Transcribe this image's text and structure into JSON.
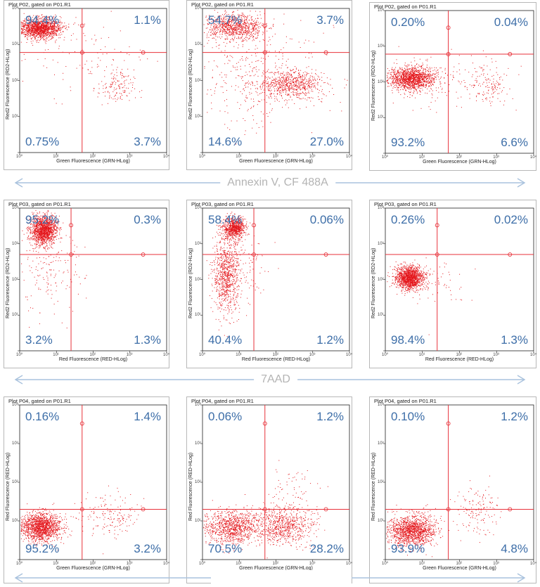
{
  "row_labels": [
    "Annexin V, CF 488A",
    "7AAD",
    ""
  ],
  "colors": {
    "dots": "#e4161b",
    "quad_lines": "#e8323a",
    "percent_text": "#3d6ea8",
    "arrow": "#a9c2dd"
  },
  "chart_data": [
    {
      "type": "scatter",
      "title": "Plot P02, gated on P01.R1",
      "xlabel": "Green Fluorescence (GRN-HLog)",
      "ylabel": "Red2 Fluorescence (RD2-HLog)",
      "x_ticks": [
        "10⁰",
        "10¹",
        "10²",
        "10³",
        "10⁴"
      ],
      "y_ticks": [
        "10⁰",
        "10¹",
        "10²",
        "10³",
        "10⁴"
      ],
      "scale": "log",
      "xlim": [
        1,
        10000
      ],
      "ylim": [
        1,
        10000
      ],
      "gate": {
        "x": 50,
        "y": 600
      },
      "quadrants": {
        "upper_left": "94.4%",
        "upper_right": "1.1%",
        "lower_left": "0.75%",
        "lower_right": "3.7%"
      }
    },
    {
      "type": "scatter",
      "title": "Plot P02, gated on P01.R1",
      "xlabel": "Green Fluorescence (GRN-HLog)",
      "ylabel": "Red2 Fluorescence (RD2-HLog)",
      "x_ticks": [
        "10⁰",
        "10¹",
        "10²",
        "10³",
        "10⁴"
      ],
      "y_ticks": [
        "10⁰",
        "10¹",
        "10²",
        "10³",
        "10⁴"
      ],
      "scale": "log",
      "xlim": [
        1,
        10000
      ],
      "ylim": [
        1,
        10000
      ],
      "gate": {
        "x": 50,
        "y": 600
      },
      "quadrants": {
        "upper_left": "54.7%",
        "upper_right": "3.7%",
        "lower_left": "14.6%",
        "lower_right": "27.0%"
      }
    },
    {
      "type": "scatter",
      "title": "Plot P02, gated on P01.R1",
      "xlabel": "Green Fluorescence (GRN-HLog)",
      "ylabel": "Red2 Fluorescence (RD2-HLog)",
      "x_ticks": [
        "10⁰",
        "10¹",
        "10²",
        "10³",
        "10⁴"
      ],
      "y_ticks": [
        "10⁰",
        "10¹",
        "10²",
        "10³",
        "10⁴"
      ],
      "scale": "log",
      "xlim": [
        1,
        10000
      ],
      "ylim": [
        1,
        10000
      ],
      "gate": {
        "x": 50,
        "y": 600
      },
      "quadrants": {
        "upper_left": "0.20%",
        "upper_right": "0.04%",
        "lower_left": "93.2%",
        "lower_right": "6.6%"
      }
    },
    {
      "type": "scatter",
      "title": "Plot P03, gated on P01.R1",
      "xlabel": "Red Fluorescence (RED-HLog)",
      "ylabel": "Red2 Fluorescence (RD2-HLog)",
      "x_ticks": [
        "10⁰",
        "10¹",
        "10²",
        "10³",
        "10⁴"
      ],
      "y_ticks": [
        "10⁰",
        "10¹",
        "10²",
        "10³",
        "10⁴"
      ],
      "scale": "log",
      "xlim": [
        1,
        10000
      ],
      "ylim": [
        1,
        10000
      ],
      "gate": {
        "x": 25,
        "y": 500
      },
      "quadrants": {
        "upper_left": "95.2%",
        "upper_right": "0.3%",
        "lower_left": "3.2%",
        "lower_right": "1.3%"
      }
    },
    {
      "type": "scatter",
      "title": "Plot P03, gated on P01.R1",
      "xlabel": "Red Fluorescence (RED-HLog)",
      "ylabel": "Red2 Fluorescence (RD2-HLog)",
      "x_ticks": [
        "10⁰",
        "10¹",
        "10²",
        "10³",
        "10⁴"
      ],
      "y_ticks": [
        "10⁰",
        "10¹",
        "10²",
        "10³",
        "10⁴"
      ],
      "scale": "log",
      "xlim": [
        1,
        10000
      ],
      "ylim": [
        1,
        10000
      ],
      "gate": {
        "x": 25,
        "y": 500
      },
      "quadrants": {
        "upper_left": "58.4%",
        "upper_right": "0.06%",
        "lower_left": "40.4%",
        "lower_right": "1.2%"
      }
    },
    {
      "type": "scatter",
      "title": "Plot P03, gated on P01.R1",
      "xlabel": "Red Fluorescence (RED-HLog)",
      "ylabel": "Red2 Fluorescence (RD2-HLog)",
      "x_ticks": [
        "10⁰",
        "10¹",
        "10²",
        "10³",
        "10⁴"
      ],
      "y_ticks": [
        "10⁰",
        "10¹",
        "10²",
        "10³",
        "10⁴"
      ],
      "scale": "log",
      "xlim": [
        1,
        10000
      ],
      "ylim": [
        1,
        10000
      ],
      "gate": {
        "x": 25,
        "y": 500
      },
      "quadrants": {
        "upper_left": "0.26%",
        "upper_right": "0.02%",
        "lower_left": "98.4%",
        "lower_right": "1.3%"
      }
    },
    {
      "type": "scatter",
      "title": "Plot P04, gated on P01.R1",
      "xlabel": "Green Fluorescence (GRN-HLog)",
      "ylabel": "Red Fluorescence (RED-HLog)",
      "x_ticks": [
        "10⁰",
        "10¹",
        "10²",
        "10³",
        "10⁴"
      ],
      "y_ticks": [
        "10⁰",
        "10¹",
        "10²",
        "10³",
        "10⁴"
      ],
      "scale": "log",
      "xlim": [
        1,
        10000
      ],
      "ylim": [
        1,
        10000
      ],
      "gate": {
        "x": 50,
        "y": 20
      },
      "quadrants": {
        "upper_left": "0.16%",
        "upper_right": "1.4%",
        "lower_left": "95.2%",
        "lower_right": "3.2%"
      }
    },
    {
      "type": "scatter",
      "title": "Plot P04, gated on P01.R1",
      "xlabel": "Green Fluorescence (GRN-HLog)",
      "ylabel": "Red Fluorescence (RED-HLog)",
      "x_ticks": [
        "10⁰",
        "10¹",
        "10²",
        "10³",
        "10⁴"
      ],
      "y_ticks": [
        "10⁰",
        "10¹",
        "10²",
        "10³",
        "10⁴"
      ],
      "scale": "log",
      "xlim": [
        1,
        10000
      ],
      "ylim": [
        1,
        10000
      ],
      "gate": {
        "x": 50,
        "y": 20
      },
      "quadrants": {
        "upper_left": "0.06%",
        "upper_right": "1.2%",
        "lower_left": "70.5%",
        "lower_right": "28.2%"
      }
    },
    {
      "type": "scatter",
      "title": "Plot P04, gated on P01.R1",
      "xlabel": "Green Fluorescence (GRN-HLog)",
      "ylabel": "Red Fluorescence (RED-HLog)",
      "x_ticks": [
        "10⁰",
        "10¹",
        "10²",
        "10³",
        "10⁴"
      ],
      "y_ticks": [
        "10⁰",
        "10¹",
        "10²",
        "10³",
        "10⁴"
      ],
      "scale": "log",
      "xlim": [
        1,
        10000
      ],
      "ylim": [
        1,
        10000
      ],
      "gate": {
        "x": 50,
        "y": 20
      },
      "quadrants": {
        "upper_left": "0.10%",
        "upper_right": "1.2%",
        "lower_left": "93.9%",
        "lower_right": "4.8%"
      }
    }
  ]
}
